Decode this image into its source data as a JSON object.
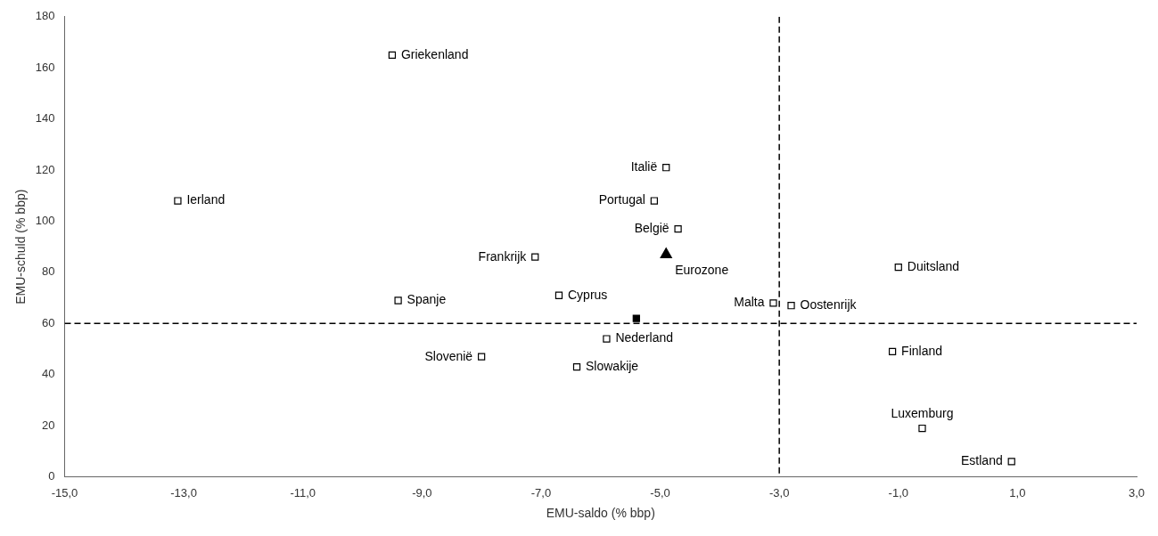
{
  "chart_data": {
    "type": "scatter",
    "xlabel": "EMU-saldo (% bbp)",
    "ylabel": "EMU-schuld (% bbp)",
    "xlim": [
      -15.0,
      3.0
    ],
    "ylim": [
      0,
      180
    ],
    "xticks": [
      {
        "value": -15.0,
        "label": "-15,0"
      },
      {
        "value": -13.0,
        "label": "-13,0"
      },
      {
        "value": -11.0,
        "label": "-11,0"
      },
      {
        "value": -9.0,
        "label": "-9,0"
      },
      {
        "value": -7.0,
        "label": "-7,0"
      },
      {
        "value": -5.0,
        "label": "-5,0"
      },
      {
        "value": -3.0,
        "label": "-3,0"
      },
      {
        "value": -1.0,
        "label": "-1,0"
      },
      {
        "value": 1.0,
        "label": "1,0"
      },
      {
        "value": 3.0,
        "label": "3,0"
      }
    ],
    "yticks": [
      0,
      20,
      40,
      60,
      80,
      100,
      120,
      140,
      160,
      180
    ],
    "grid": false,
    "reference_lines": [
      {
        "axis": "y",
        "value": 60,
        "line_style": "dashed"
      },
      {
        "axis": "x",
        "value": -3.0,
        "line_style": "dashed"
      }
    ],
    "series": [
      {
        "marker": "square",
        "color": "#ffffff",
        "x": [
          -9.5,
          -13.1,
          -4.9,
          -5.1,
          -4.7,
          -7.1,
          -1.0,
          -9.4,
          -6.7,
          -3.1,
          -2.8,
          -5.9,
          -8.0,
          -6.4,
          -1.1,
          -0.6,
          0.9
        ],
        "values": [
          165,
          108,
          121,
          108,
          97,
          86,
          82,
          69,
          71,
          68,
          67,
          54,
          47,
          43,
          49,
          19,
          6
        ],
        "labels": [
          "Griekenland",
          "Ierland",
          "Italië",
          "Portugal",
          "België",
          "Frankrijk",
          "Duitsland",
          "Spanje",
          "Cyprus",
          "Malta",
          "Oostenrijk",
          "Nederland",
          "Slovenië",
          "Slowakije",
          "Finland",
          "Luxemburg",
          "Estland"
        ]
      },
      {
        "marker": "triangle",
        "color": "#000000",
        "x": [
          -4.9
        ],
        "values": [
          87
        ],
        "labels": [
          "Eurozone"
        ]
      },
      {
        "marker": "square",
        "color": "#000000",
        "x": [
          -5.4
        ],
        "values": [
          62
        ]
      }
    ]
  }
}
